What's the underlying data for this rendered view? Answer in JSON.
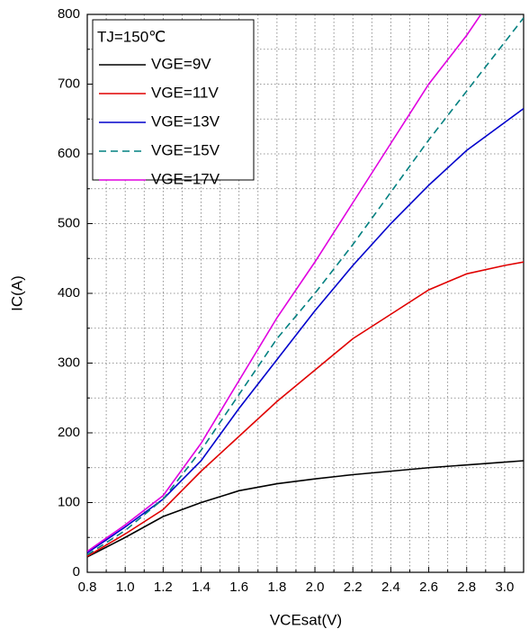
{
  "chart_data": {
    "type": "line",
    "xlabel": "VCEsat(V)",
    "ylabel": "IC(A)",
    "legend_title": "TJ=150℃",
    "x": [
      0.8,
      1.0,
      1.2,
      1.4,
      1.6,
      1.8,
      2.0,
      2.2,
      2.4,
      2.6,
      2.8,
      3.0,
      3.1
    ],
    "series": [
      {
        "name": "VGE=9V",
        "color": "#000000",
        "dash": false,
        "values": [
          22,
          50,
          80,
          100,
          117,
          127,
          134,
          140,
          145,
          150,
          154,
          158,
          160
        ]
      },
      {
        "name": "VGE=11V",
        "color": "#e00000",
        "dash": false,
        "values": [
          23,
          55,
          90,
          145,
          195,
          245,
          290,
          335,
          370,
          405,
          428,
          440,
          445
        ]
      },
      {
        "name": "VGE=13V",
        "color": "#0000cc",
        "dash": false,
        "values": [
          28,
          65,
          105,
          160,
          235,
          305,
          375,
          440,
          500,
          555,
          605,
          645,
          665
        ]
      },
      {
        "name": "VGE=15V",
        "color": "#008080",
        "dash": true,
        "values": [
          25,
          60,
          105,
          175,
          255,
          335,
          400,
          470,
          545,
          620,
          690,
          760,
          795
        ]
      },
      {
        "name": "VGE=17V",
        "color": "#e000e0",
        "dash": false,
        "values": [
          30,
          68,
          110,
          185,
          275,
          365,
          445,
          530,
          615,
          700,
          770,
          850,
          null
        ]
      }
    ],
    "xlim": [
      0.8,
      3.1
    ],
    "ylim": [
      0,
      800
    ],
    "xticks": [
      0.8,
      1.0,
      1.2,
      1.4,
      1.6,
      1.8,
      2.0,
      2.2,
      2.4,
      2.6,
      2.8,
      3.0
    ],
    "yticks": [
      0,
      100,
      200,
      300,
      400,
      500,
      600,
      700,
      800
    ],
    "xminorticks": [
      0.9,
      1.1,
      1.3,
      1.5,
      1.7,
      1.9,
      2.1,
      2.3,
      2.5,
      2.7,
      2.9,
      3.1
    ],
    "yminorticks": [
      50,
      150,
      250,
      350,
      450,
      550,
      650,
      750
    ],
    "grid": true,
    "legend": "upper left"
  }
}
